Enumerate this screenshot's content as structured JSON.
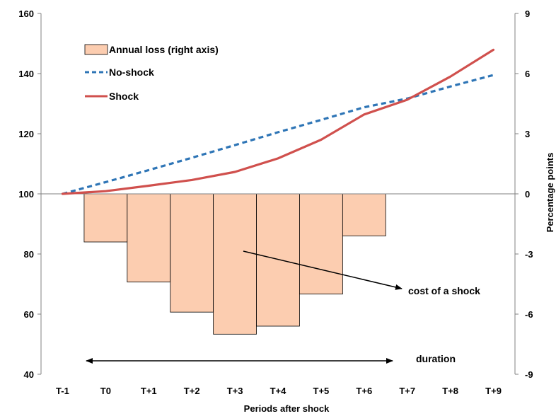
{
  "chart_data": {
    "type": "bar+line",
    "categories": [
      "T-1",
      "T0",
      "T+1",
      "T+2",
      "T+3",
      "T+4",
      "T+5",
      "T+6",
      "T+7",
      "T+8",
      "T+9"
    ],
    "xlabel": "Periods after shock",
    "y_left": {
      "lim": [
        40,
        160
      ],
      "ticks": [
        "40",
        "60",
        "80",
        "100",
        "120",
        "140",
        "160"
      ]
    },
    "y_right": {
      "label": "Percentage  points",
      "lim": [
        -9,
        9
      ],
      "ticks": [
        "-9",
        "-6",
        "-3",
        "0",
        "3",
        "6",
        "9"
      ]
    },
    "bars": {
      "name": "Annual loss (right axis)",
      "axis": "right",
      "categories": [
        "T0",
        "T+1",
        "T+2",
        "T+3",
        "T+4",
        "T+5",
        "T+6"
      ],
      "values": [
        -2.4,
        -4.4,
        -5.9,
        -7.0,
        -6.6,
        -5.0,
        -2.1
      ],
      "color": "#FCCDB0"
    },
    "series": [
      {
        "name": "No-shock",
        "axis": "left",
        "style": "dashed",
        "color": "#2E75B6",
        "values": [
          100,
          103.9,
          107.9,
          112.0,
          116.2,
          120.5,
          124.6,
          128.8,
          131.7,
          135.7,
          139.5
        ]
      },
      {
        "name": "Shock",
        "axis": "left",
        "style": "solid",
        "color": "#D0504D",
        "values": [
          100,
          100.9,
          102.7,
          104.6,
          107.3,
          111.8,
          118.0,
          126.4,
          131.3,
          139.0,
          147.9
        ]
      }
    ],
    "annotations": {
      "cost": "cost of a shock",
      "duration": "duration"
    },
    "legend": "top-left",
    "grid": false
  }
}
